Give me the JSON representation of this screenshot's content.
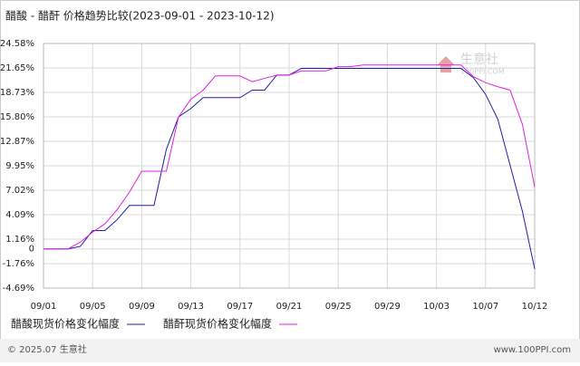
{
  "chart_data": {
    "type": "line",
    "title": "醋酸 - 醋酐 价格趋势比较(2023-09-01 - 2023-10-12)",
    "categories": [
      "09/01",
      null,
      null,
      null,
      "09/05",
      null,
      null,
      null,
      "09/09",
      null,
      null,
      null,
      "09/13",
      null,
      null,
      null,
      "09/17",
      null,
      null,
      null,
      "09/21",
      null,
      null,
      null,
      "09/25",
      null,
      null,
      null,
      "09/29",
      null,
      null,
      null,
      "10/03",
      null,
      null,
      null,
      "10/07",
      null,
      null,
      null,
      "10/12"
    ],
    "series": [
      {
        "name": "醋酸现货价格变化幅度",
        "color": "#1f1fa8",
        "values": [
          0,
          0,
          0,
          0.3,
          2.2,
          2.2,
          3.5,
          5.2,
          5.2,
          5.2,
          11.9,
          15.8,
          16.8,
          18.1,
          18.1,
          18.1,
          18.1,
          19.0,
          19.0,
          20.8,
          20.8,
          21.6,
          21.6,
          21.6,
          21.6,
          21.6,
          21.6,
          21.6,
          21.6,
          21.6,
          21.6,
          21.6,
          21.6,
          21.6,
          21.6,
          20.5,
          18.5,
          15.5,
          10,
          4.5,
          -2.4
        ]
      },
      {
        "name": "醋酐现货价格变化幅度",
        "color": "#e020e0",
        "values": [
          0,
          0,
          0,
          0.8,
          2.0,
          3.0,
          4.7,
          6.8,
          9.3,
          9.3,
          9.3,
          15.8,
          17.9,
          19.0,
          20.7,
          20.7,
          20.7,
          20.0,
          20.4,
          20.8,
          20.8,
          21.3,
          21.3,
          21.3,
          21.8,
          21.8,
          22.0,
          22.0,
          22.0,
          22.0,
          22.0,
          22.0,
          22.0,
          22.0,
          22.0,
          20.6,
          19.9,
          19.4,
          19.0,
          14.9,
          7.4
        ]
      }
    ],
    "ylim": [
      -4.69,
      24.58
    ],
    "yticks": [
      {
        "value": 24.58,
        "label": "24.58%"
      },
      {
        "value": 21.65,
        "label": "21.65%"
      },
      {
        "value": 18.73,
        "label": "18.73%"
      },
      {
        "value": 15.8,
        "label": "15.80%"
      },
      {
        "value": 12.87,
        "label": "12.87%"
      },
      {
        "value": 9.95,
        "label": "9.95%"
      },
      {
        "value": 7.02,
        "label": "7.02%"
      },
      {
        "value": 4.09,
        "label": "4.09%"
      },
      {
        "value": 1.16,
        "label": "1.16%"
      },
      0,
      {
        "value": -1.76,
        "label": "-1.76%"
      },
      {
        "value": -4.69,
        "label": "-4.69%"
      }
    ],
    "grid": true,
    "watermark": "生意社",
    "watermark_url": "100PPI.COM",
    "footer_left": "© 2025.07 生意社",
    "footer_right": "www.100PPI.com"
  }
}
